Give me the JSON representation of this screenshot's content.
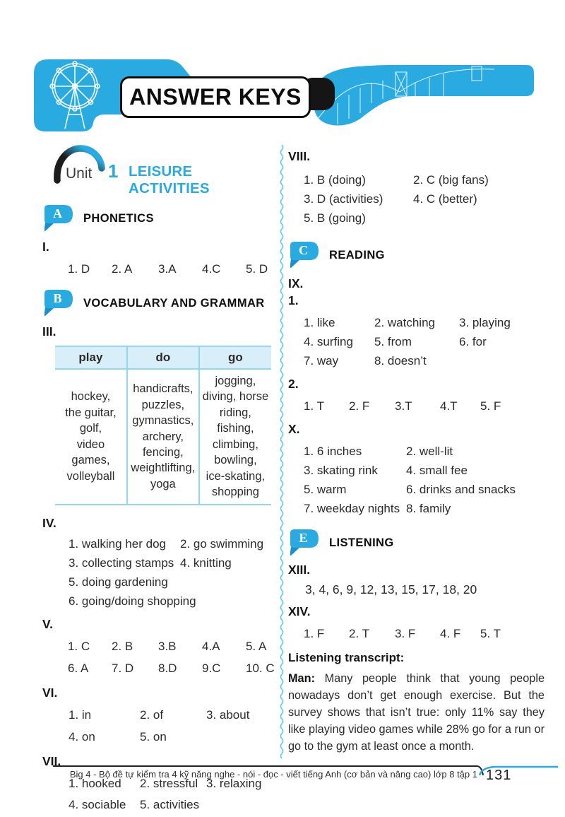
{
  "page": {
    "title": "ANSWER KEYS",
    "footer_text": "Big 4 - Bộ đề tự kiểm tra 4 kỹ năng nghe - nói - đọc - viết tiếng Anh (cơ bản và nâng cao) lớp 8 tập 1",
    "page_number": "131"
  },
  "unit": {
    "label": "Unit",
    "number": "1",
    "title": "LEISURE ACTIVITIES"
  },
  "colors": {
    "accent_blue": "#29ABE2",
    "badge_tail_blue": "#1D90CC",
    "divider_blue": "#5BC8F5",
    "table_border": "#93D6F3",
    "table_header_bg": "#D8EEF9",
    "ink": "#0d0d0d"
  },
  "sections": {
    "phonetics": {
      "letter": "A",
      "title": "PHONETICS"
    },
    "vocabulary": {
      "letter": "B",
      "title": "VOCABULARY AND GRAMMAR"
    },
    "reading": {
      "letter": "C",
      "title": "READING"
    },
    "listening": {
      "letter": "E",
      "title": "LISTENING"
    }
  },
  "exercises": {
    "I": {
      "label": "I.",
      "answers": [
        "1. D",
        "2. A",
        "3.A",
        "4.C",
        "5. D"
      ]
    },
    "III": {
      "label": "III.",
      "table": {
        "headers": [
          "play",
          "do",
          "go"
        ],
        "cells": [
          "hockey,\nthe guitar,\ngolf,\nvideo games,\nvolleyball",
          "handicrafts,\npuzzles,\ngymnastics,\narchery,\nfencing,\nweightlifting,\nyoga",
          "jogging,\ndiving, horse\nriding, fishing,\nclimbing,\nbowling,\nice-skating,\nshopping"
        ]
      }
    },
    "IV": {
      "label": "IV.",
      "items": [
        "1. walking her dog",
        "2. go swimming",
        "3. collecting stamps",
        "4. knitting",
        "5. doing gardening",
        "6. going/doing shopping"
      ]
    },
    "V": {
      "label": "V.",
      "answers": [
        "1. C",
        "2. B",
        "3.B",
        "4.A",
        "5. A",
        "6. A",
        "7. D",
        "8.D",
        "9.C",
        "10. C"
      ]
    },
    "VI": {
      "label": "VI.",
      "answers": [
        "1. in",
        "2. of",
        "3. about",
        "4. on",
        "5. on"
      ]
    },
    "VII": {
      "label": "VII.",
      "answers": [
        "1. hooked",
        "2. stressful",
        "3. relaxing",
        "4. sociable",
        "5. activities"
      ]
    },
    "VIII": {
      "label": "VIII.",
      "answers": [
        "1. B (doing)",
        "2. C (big fans)",
        "3. D (activities)",
        "4. C (better)",
        "5. B (going)"
      ]
    },
    "IX": {
      "label": "IX.",
      "part1": {
        "label": "1.",
        "answers": [
          "1. like",
          "2. watching",
          "3. playing",
          "4. surfing",
          "5. from",
          "6. for",
          "7. way",
          "8. doesn’t"
        ]
      },
      "part2": {
        "label": "2.",
        "answers": [
          "1. T",
          "2. F",
          "3.T",
          "4.T",
          "5. F"
        ]
      }
    },
    "X": {
      "label": "X.",
      "answers": [
        "1. 6 inches",
        "2. well-lit",
        "3. skating rink",
        "4. small fee",
        "5. warm",
        "6. drinks and snacks",
        "7. weekday nights",
        "8. family"
      ]
    },
    "XIII": {
      "label": "XIII.",
      "answer": "3, 4, 6, 9, 12, 13, 15, 17, 18, 20"
    },
    "XIV": {
      "label": "XIV.",
      "answers": [
        "1. F",
        "2. T",
        "3. F",
        "4. F",
        "5. T"
      ]
    }
  },
  "transcript": {
    "title": "Listening transcript:",
    "speaker": "Man:",
    "text": "Many people think that young people nowadays don’t get enough exercise. But the survey shows that isn’t true: only 11% say they like playing video games while 28% go for a run or go to the gym at least once a month."
  }
}
